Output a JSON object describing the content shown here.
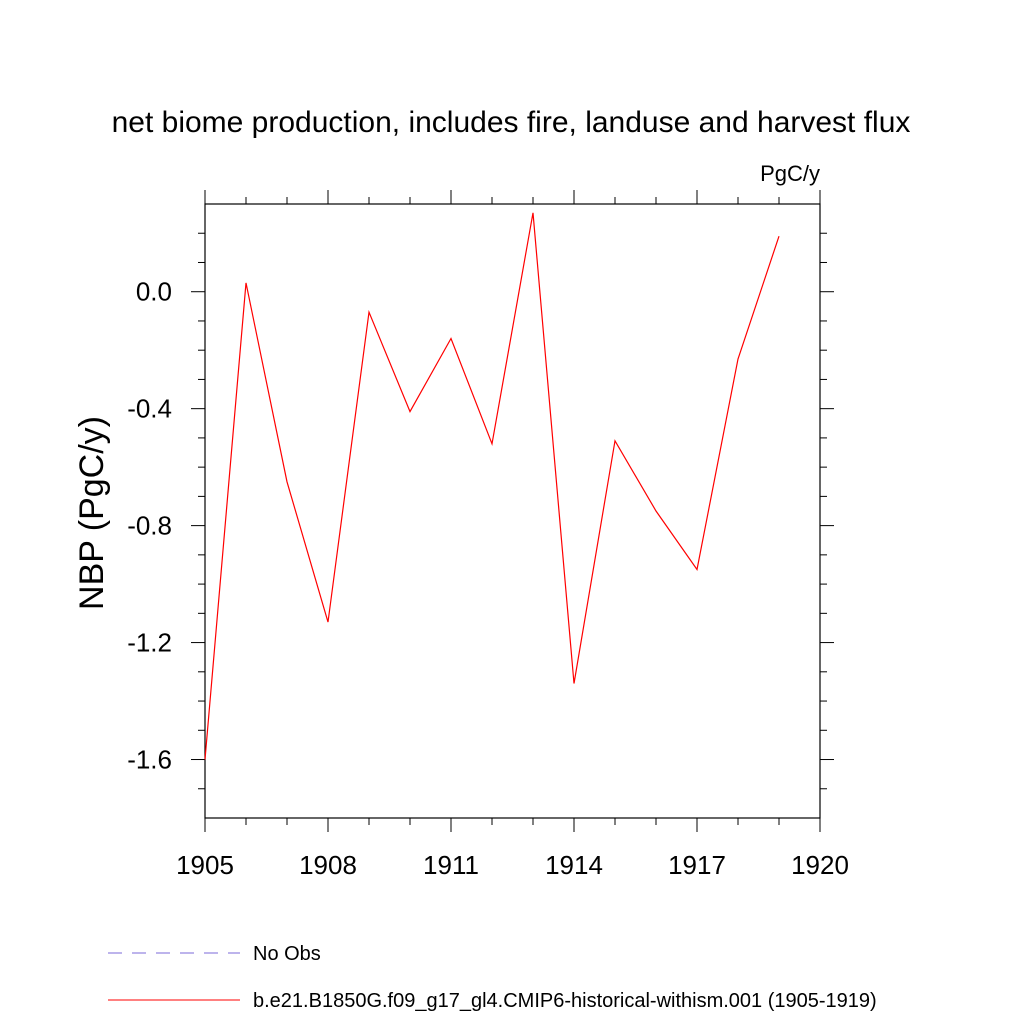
{
  "chart_data": {
    "type": "line",
    "title": "net biome production, includes fire, landuse and harvest flux",
    "units_label": "PgC/y",
    "ylabel": "NBP  (PgC/y)",
    "xlabel": "",
    "xlim": [
      1905,
      1920
    ],
    "ylim": [
      -1.8,
      0.3
    ],
    "x_ticks": [
      1905,
      1908,
      1911,
      1914,
      1917,
      1920
    ],
    "x_tick_labels": [
      "1905",
      "1908",
      "1911",
      "1914",
      "1917",
      "1920"
    ],
    "y_ticks": [
      -1.6,
      -1.2,
      -0.8,
      -0.4,
      0.0
    ],
    "y_tick_labels": [
      "-1.6",
      "-1.2",
      "-0.8",
      "-0.4",
      "0.0"
    ],
    "grid": false,
    "legend_position": "bottom",
    "series": [
      {
        "name": "b.e21.B1850G.f09_g17_gl4.CMIP6-historical-withism.001 (1905-1919)",
        "color": "#ff0000",
        "dash": "solid",
        "x": [
          1905,
          1906,
          1907,
          1908,
          1909,
          1910,
          1911,
          1912,
          1913,
          1914,
          1915,
          1916,
          1917,
          1918,
          1919
        ],
        "y": [
          -1.6,
          0.03,
          -0.65,
          -1.13,
          -0.07,
          -0.41,
          -0.16,
          -0.52,
          0.27,
          -1.34,
          -0.51,
          -0.75,
          -0.95,
          -0.23,
          0.19
        ]
      }
    ],
    "legend": [
      {
        "label": "No Obs",
        "color": "#7b68d8",
        "dash": "dashed"
      },
      {
        "label": "b.e21.B1850G.f09_g17_gl4.CMIP6-historical-withism.001 (1905-1919)",
        "color": "#ff0000",
        "dash": "solid"
      }
    ]
  }
}
